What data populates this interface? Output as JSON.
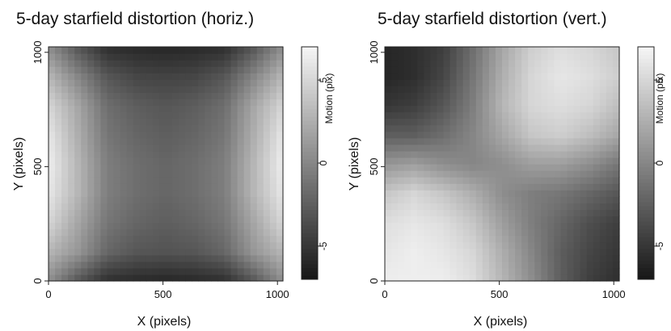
{
  "chart_data": [
    {
      "type": "heatmap",
      "title": "5-day starfield distortion (horiz.)",
      "xlabel": "X (pixels)",
      "ylabel": "Y (pixels)",
      "colorbar_label": "Motion (pix)",
      "xlim": [
        0,
        1024
      ],
      "ylim": [
        0,
        1024
      ],
      "xticks": [
        0,
        500,
        1000
      ],
      "yticks": [
        0,
        500,
        1000
      ],
      "colorbar_range": [
        -7,
        7
      ],
      "colorbar_ticks": [
        -5,
        0,
        5
      ],
      "colormap": "gray",
      "grid_x": [
        0,
        128,
        256,
        384,
        512,
        640,
        768,
        896,
        1024
      ],
      "grid_y": [
        0,
        128,
        256,
        384,
        512,
        640,
        768,
        896,
        1024
      ],
      "z": [
        [
          0.5,
          -3.0,
          -5.5,
          -5.8,
          -6.0,
          -5.8,
          -5.5,
          -3.0,
          0.5
        ],
        [
          3.0,
          1.0,
          -2.0,
          -3.0,
          -3.2,
          -3.0,
          -2.0,
          1.0,
          3.0
        ],
        [
          5.0,
          2.0,
          -1.0,
          -2.0,
          -2.5,
          -2.0,
          -1.0,
          2.0,
          5.0
        ],
        [
          6.0,
          3.0,
          -0.5,
          -1.5,
          -2.0,
          -1.5,
          -0.5,
          3.0,
          6.0
        ],
        [
          6.5,
          3.0,
          -0.5,
          -1.5,
          -2.0,
          -1.5,
          -0.5,
          3.0,
          6.5
        ],
        [
          6.0,
          2.5,
          -1.0,
          -2.0,
          -2.5,
          -2.0,
          -1.0,
          2.5,
          6.0
        ],
        [
          5.0,
          2.0,
          -1.5,
          -2.5,
          -3.0,
          -2.5,
          -1.5,
          2.0,
          5.0
        ],
        [
          3.0,
          0.0,
          -3.0,
          -4.0,
          -4.2,
          -4.0,
          -3.0,
          0.0,
          3.0
        ],
        [
          0.5,
          -3.0,
          -5.5,
          -5.8,
          -6.0,
          -5.8,
          -5.5,
          -3.0,
          0.5
        ]
      ]
    },
    {
      "type": "heatmap",
      "title": "5-day starfield distortion (vert.)",
      "xlabel": "X (pixels)",
      "ylabel": "Y (pixels)",
      "colorbar_label": "Motion (pix)",
      "xlim": [
        0,
        1024
      ],
      "ylim": [
        0,
        1024
      ],
      "xticks": [
        0,
        500,
        1000
      ],
      "yticks": [
        0,
        500,
        1000
      ],
      "colorbar_range": [
        -7,
        7
      ],
      "colorbar_ticks": [
        -5,
        0,
        5
      ],
      "colormap": "gray",
      "grid_x": [
        0,
        128,
        256,
        384,
        512,
        640,
        768,
        896,
        1024
      ],
      "grid_y": [
        0,
        128,
        256,
        384,
        512,
        640,
        768,
        896,
        1024
      ],
      "z": [
        [
          6.5,
          6.5,
          6.5,
          5.5,
          3.0,
          0.5,
          -2.5,
          -4.5,
          -5.5
        ],
        [
          6.0,
          6.5,
          6.0,
          5.0,
          2.5,
          0.0,
          -2.5,
          -4.0,
          -5.0
        ],
        [
          5.5,
          6.0,
          5.5,
          4.0,
          1.5,
          -0.5,
          -2.0,
          -3.5,
          -4.5
        ],
        [
          4.0,
          5.0,
          4.0,
          2.5,
          0.5,
          -0.5,
          -1.0,
          -2.0,
          -3.0
        ],
        [
          1.0,
          1.5,
          0.5,
          0.0,
          0.5,
          1.5,
          1.5,
          0.5,
          -1.0
        ],
        [
          -2.5,
          -2.5,
          -1.5,
          0.0,
          2.0,
          4.0,
          4.5,
          3.5,
          2.0
        ],
        [
          -5.0,
          -4.5,
          -3.0,
          -0.5,
          3.0,
          5.0,
          5.5,
          5.0,
          3.5
        ],
        [
          -6.0,
          -5.5,
          -4.0,
          -1.0,
          2.5,
          5.0,
          6.0,
          5.5,
          4.5
        ],
        [
          -6.0,
          -5.5,
          -4.5,
          -1.5,
          2.0,
          4.5,
          5.5,
          5.0,
          4.0
        ]
      ]
    }
  ]
}
